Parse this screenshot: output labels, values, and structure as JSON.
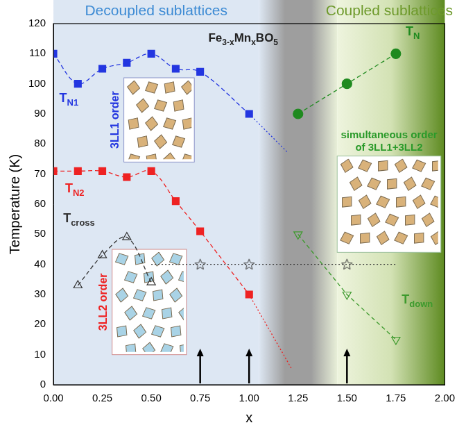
{
  "chart_data": {
    "type": "scatter",
    "title_parts": [
      {
        "text": "Fe"
      },
      {
        "text": "3-x",
        "sub": true
      },
      {
        "text": "Mn"
      },
      {
        "text": "x",
        "sub": true
      },
      {
        "text": "BO"
      },
      {
        "text": "5",
        "sub": true
      }
    ],
    "x_label": "x",
    "y_label": "Temperature (K)",
    "xlim": [
      0,
      2
    ],
    "xticks": [
      {
        "value": 0,
        "label": "0.00"
      },
      {
        "value": 0.25,
        "label": "0.25"
      },
      {
        "value": 0.5,
        "label": "0.50"
      },
      {
        "value": 0.75,
        "label": "0.75"
      },
      {
        "value": 1,
        "label": "1.00"
      },
      {
        "value": 1.25,
        "label": "1.25"
      },
      {
        "value": 1.5,
        "label": "1.50"
      },
      {
        "value": 1.75,
        "label": "1.75"
      },
      {
        "value": 2,
        "label": "2.00"
      }
    ],
    "ylim": [
      0,
      120
    ],
    "yticks": [
      0,
      10,
      20,
      30,
      40,
      50,
      60,
      70,
      80,
      90,
      100,
      110,
      120
    ],
    "grid": false,
    "regions": [
      {
        "text": "Decoupled sublattices",
        "color": "#3d8bd4",
        "xlim": [
          0,
          1.05
        ],
        "colors": [
          "#dde7f3",
          "#dde7f3"
        ]
      },
      {
        "xlim": [
          1.05,
          1.45
        ],
        "colors": [
          "#dde7f3",
          "#9e9e9e",
          "#9e9e9e",
          "#e8efd8"
        ]
      },
      {
        "text": "Coupled sublattices",
        "color": "#6e9a2c",
        "xlim": [
          1.45,
          2
        ],
        "colors": [
          "#eef4de",
          "#d3e2b4",
          "#5d8a20"
        ]
      }
    ],
    "series": [
      {
        "label": {
          "text": "T",
          "sub": "N1"
        },
        "color": "#2336e0",
        "marker": "square",
        "line_style": "dashed",
        "points": [
          [
            0,
            110
          ],
          [
            0.125,
            100
          ],
          [
            0.25,
            105
          ],
          [
            0.375,
            107
          ],
          [
            0.5,
            110
          ],
          [
            0.625,
            105
          ],
          [
            0.75,
            104
          ],
          [
            1,
            90
          ]
        ]
      },
      {
        "color": "#2336e0",
        "marker": "none",
        "line_style": "dotted",
        "points": [
          [
            1,
            90
          ],
          [
            1.2,
            77
          ]
        ]
      },
      {
        "label": {
          "text": "T",
          "sub": "N2"
        },
        "color": "#ee2222",
        "marker": "square",
        "line_style": "dashed",
        "points": [
          [
            0,
            71
          ],
          [
            0.125,
            71
          ],
          [
            0.25,
            71
          ],
          [
            0.375,
            69
          ],
          [
            0.5,
            71
          ],
          [
            0.625,
            61
          ],
          [
            0.75,
            51
          ],
          [
            1,
            30
          ]
        ]
      },
      {
        "color": "#ee2222",
        "marker": "none",
        "line_style": "dotted",
        "points": [
          [
            1,
            30
          ],
          [
            1.22,
            5
          ]
        ]
      },
      {
        "label": {
          "text": "T",
          "sub": "cross"
        },
        "color": "#333333",
        "marker": "open_triangle",
        "line_style": "dashed",
        "points": [
          [
            0.125,
            33
          ],
          [
            0.25,
            43
          ],
          [
            0.375,
            49
          ],
          [
            0.5,
            34
          ]
        ]
      },
      {
        "color": "#333333",
        "marker": "none",
        "line_style": "dotted",
        "points": [
          [
            0.5,
            40
          ],
          [
            1.75,
            40
          ]
        ]
      },
      {
        "color": "#333333",
        "marker": "open_star",
        "line_style": "none",
        "points": [
          [
            0.75,
            40
          ],
          [
            1,
            40
          ],
          [
            1.5,
            40
          ]
        ]
      },
      {
        "label": {
          "text": "T",
          "sub": "N"
        },
        "color": "#1f8a1f",
        "marker": "circle",
        "line_style": "dashed",
        "points": [
          [
            1.25,
            90
          ],
          [
            1.5,
            100
          ],
          [
            1.75,
            110
          ]
        ]
      },
      {
        "label": {
          "text": "T",
          "sub": "down"
        },
        "color": "#3d9a2d",
        "marker": "open_triangle_down",
        "line_style": "dashed",
        "points": [
          [
            1.25,
            50
          ],
          [
            1.5,
            30
          ],
          [
            1.75,
            15
          ]
        ]
      }
    ],
    "insets": [
      {
        "text": "3LL1 order",
        "color": "#2336e0"
      },
      {
        "text": "3LL2 order",
        "color": "#ee2222"
      },
      {
        "text": "simultaneous order of 3LL1+3LL2",
        "color": "#2a9a2a"
      }
    ],
    "arrows": {
      "x": [
        0.75,
        1,
        1.5
      ],
      "color": "#000000"
    }
  }
}
